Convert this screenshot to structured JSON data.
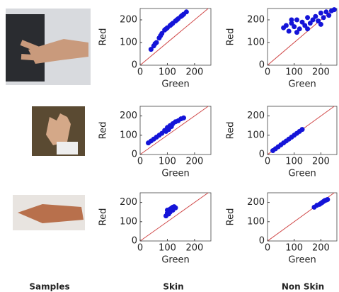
{
  "captions": [
    "Samples",
    "Skin",
    "Non Skin"
  ],
  "chart_data": [
    {
      "type": "scatter",
      "xlabel": "Green",
      "ylabel": "Red",
      "color": "#1414d8",
      "line_color": "#d04848",
      "xlim": [
        0,
        260
      ],
      "ylim": [
        0,
        250
      ],
      "xticks": [
        0,
        100,
        200
      ],
      "yticks": [
        0,
        100,
        200
      ],
      "x": [
        40,
        50,
        60,
        70,
        80,
        90,
        100,
        110,
        120,
        130,
        140,
        150,
        160,
        170,
        55,
        75,
        95,
        115,
        135,
        155
      ],
      "values": [
        70,
        85,
        100,
        120,
        140,
        155,
        165,
        175,
        185,
        195,
        205,
        215,
        225,
        235,
        95,
        130,
        160,
        180,
        200,
        220
      ]
    },
    {
      "type": "scatter",
      "xlabel": "Green",
      "ylabel": "Red",
      "color": "#1414d8",
      "line_color": "#d04848",
      "xlim": [
        0,
        260
      ],
      "ylim": [
        0,
        250
      ],
      "xticks": [
        0,
        100,
        200
      ],
      "yticks": [
        0,
        100,
        200
      ],
      "x": [
        60,
        70,
        80,
        90,
        100,
        110,
        120,
        130,
        140,
        150,
        160,
        170,
        180,
        190,
        200,
        210,
        220,
        230,
        240,
        250,
        90,
        110,
        150,
        200
      ],
      "values": [
        165,
        175,
        150,
        185,
        170,
        200,
        160,
        190,
        175,
        210,
        185,
        200,
        215,
        195,
        230,
        210,
        235,
        220,
        240,
        245,
        200,
        145,
        160,
        180
      ]
    },
    {
      "type": "scatter",
      "xlabel": "Green",
      "ylabel": "Red",
      "color": "#1414d8",
      "line_color": "#d04848",
      "xlim": [
        0,
        260
      ],
      "ylim": [
        0,
        250
      ],
      "xticks": [
        0,
        100,
        200
      ],
      "yticks": [
        0,
        100,
        200
      ],
      "x": [
        30,
        40,
        50,
        60,
        70,
        80,
        90,
        100,
        110,
        120,
        130,
        140,
        150,
        160,
        95,
        105,
        115
      ],
      "values": [
        60,
        70,
        80,
        90,
        100,
        110,
        125,
        140,
        150,
        160,
        170,
        175,
        185,
        190,
        120,
        130,
        145
      ]
    },
    {
      "type": "scatter",
      "xlabel": "Green",
      "ylabel": "Red",
      "color": "#1414d8",
      "line_color": "#d04848",
      "xlim": [
        0,
        260
      ],
      "ylim": [
        0,
        250
      ],
      "xticks": [
        0,
        100,
        200
      ],
      "yticks": [
        0,
        100,
        200
      ],
      "x": [
        20,
        30,
        40,
        50,
        60,
        70,
        80,
        90,
        100,
        110,
        120,
        130
      ],
      "values": [
        20,
        30,
        40,
        50,
        60,
        70,
        80,
        90,
        100,
        110,
        120,
        130
      ]
    },
    {
      "type": "scatter",
      "xlabel": "Green",
      "ylabel": "Red",
      "color": "#1414d8",
      "line_color": "#d04848",
      "xlim": [
        0,
        260
      ],
      "ylim": [
        0,
        250
      ],
      "xticks": [
        0,
        100,
        200
      ],
      "yticks": [
        0,
        100,
        200
      ],
      "x": [
        95,
        100,
        105,
        110,
        115,
        120,
        125,
        130,
        100,
        110,
        120,
        105
      ],
      "values": [
        130,
        145,
        155,
        165,
        170,
        175,
        178,
        172,
        160,
        150,
        160,
        140
      ]
    },
    {
      "type": "scatter",
      "xlabel": "Green",
      "ylabel": "Red",
      "color": "#1414d8",
      "line_color": "#d04848",
      "xlim": [
        0,
        260
      ],
      "ylim": [
        0,
        250
      ],
      "xticks": [
        0,
        100,
        200
      ],
      "yticks": [
        0,
        100,
        200
      ],
      "x": [
        175,
        185,
        195,
        200,
        205,
        210,
        215,
        220,
        225
      ],
      "values": [
        175,
        185,
        190,
        195,
        200,
        205,
        210,
        212,
        215
      ]
    }
  ]
}
